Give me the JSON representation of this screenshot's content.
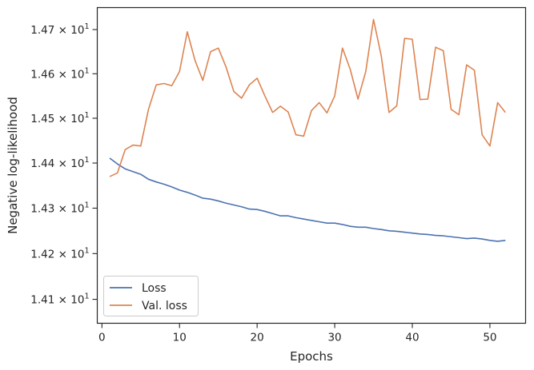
{
  "chart_data": {
    "type": "line",
    "title": "",
    "xlabel": "Epochs",
    "ylabel": "Negative log-likelihood",
    "y_scale": "log",
    "xlim": [
      -0.6,
      54.6
    ],
    "ylim": [
      14.048,
      14.75
    ],
    "x_ticks": [
      0,
      10,
      20,
      30,
      40,
      50
    ],
    "y_ticks": [
      14.1,
      14.2,
      14.3,
      14.4,
      14.5,
      14.6,
      14.7
    ],
    "y_tick_labels": [
      {
        "mantissa": "1.41",
        "base": "10",
        "exponent": "1"
      },
      {
        "mantissa": "1.42",
        "base": "10",
        "exponent": "1"
      },
      {
        "mantissa": "1.43",
        "base": "10",
        "exponent": "1"
      },
      {
        "mantissa": "1.44",
        "base": "10",
        "exponent": "1"
      },
      {
        "mantissa": "1.45",
        "base": "10",
        "exponent": "1"
      },
      {
        "mantissa": "1.46",
        "base": "10",
        "exponent": "1"
      },
      {
        "mantissa": "1.47",
        "base": "10",
        "exponent": "1"
      }
    ],
    "grid": false,
    "legend_position": "lower-left",
    "x": [
      1,
      2,
      3,
      4,
      5,
      6,
      7,
      8,
      9,
      10,
      11,
      12,
      13,
      14,
      15,
      16,
      17,
      18,
      19,
      20,
      21,
      22,
      23,
      24,
      25,
      26,
      27,
      28,
      29,
      30,
      31,
      32,
      33,
      34,
      35,
      36,
      37,
      38,
      39,
      40,
      41,
      42,
      43,
      44,
      45,
      46,
      47,
      48,
      49,
      50,
      51,
      52
    ],
    "series": [
      {
        "name": "Loss",
        "color": "#4c72b0",
        "values": [
          14.411,
          14.398,
          14.387,
          14.381,
          14.375,
          14.364,
          14.358,
          14.353,
          14.347,
          14.34,
          14.335,
          14.329,
          14.322,
          14.32,
          14.316,
          14.311,
          14.307,
          14.303,
          14.298,
          14.297,
          14.293,
          14.288,
          14.283,
          14.283,
          14.279,
          14.276,
          14.273,
          14.27,
          14.267,
          14.267,
          14.264,
          14.26,
          14.258,
          14.258,
          14.255,
          14.253,
          14.25,
          14.249,
          14.247,
          14.245,
          14.243,
          14.242,
          14.24,
          14.239,
          14.237,
          14.235,
          14.233,
          14.234,
          14.232,
          14.229,
          14.227,
          14.229
        ]
      },
      {
        "name": "Val. loss",
        "color": "#dd8452",
        "values": [
          14.37,
          14.378,
          14.43,
          14.44,
          14.438,
          14.52,
          14.575,
          14.578,
          14.573,
          14.605,
          14.695,
          14.63,
          14.585,
          14.65,
          14.658,
          14.615,
          14.56,
          14.545,
          14.575,
          14.59,
          14.55,
          14.513,
          14.527,
          14.514,
          14.463,
          14.46,
          14.517,
          14.535,
          14.512,
          14.55,
          14.658,
          14.61,
          14.543,
          14.605,
          14.723,
          14.64,
          14.513,
          14.528,
          14.68,
          14.678,
          14.542,
          14.543,
          14.66,
          14.652,
          14.52,
          14.508,
          14.62,
          14.608,
          14.463,
          14.438,
          14.535,
          14.513
        ]
      }
    ]
  }
}
